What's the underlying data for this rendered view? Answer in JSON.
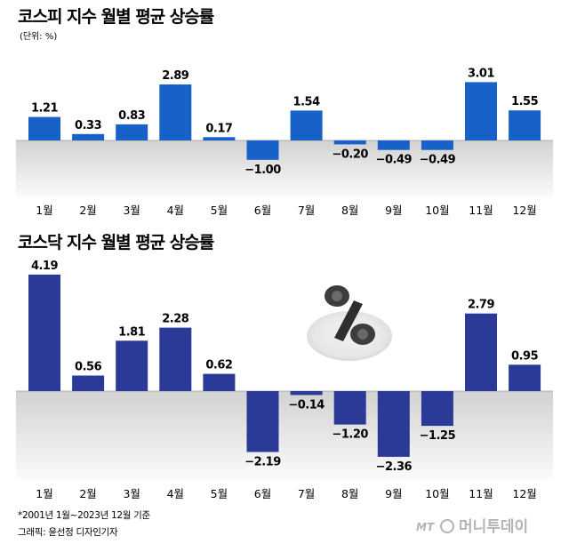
{
  "chart_data": [
    {
      "type": "bar",
      "title": "코스피 지수 월별 평균 상승률",
      "unit_note": "(단위: %)",
      "categories": [
        "1월",
        "2월",
        "3월",
        "4월",
        "5월",
        "6월",
        "7월",
        "8월",
        "9월",
        "10월",
        "11월",
        "12월"
      ],
      "values": [
        1.21,
        0.33,
        0.83,
        2.89,
        0.17,
        -1.0,
        1.54,
        -0.2,
        -0.49,
        -0.49,
        3.01,
        1.55
      ],
      "value_labels": [
        "1.21",
        "0.33",
        "0.83",
        "2.89",
        "0.17",
        "−1.00",
        "1.54",
        "−0.20",
        "−0.49",
        "−0.49",
        "3.01",
        "1.55"
      ],
      "bar_color": "#1761c9",
      "grid": false
    },
    {
      "type": "bar",
      "title": "코스닥 지수 월별 평균 상승률",
      "categories": [
        "1월",
        "2월",
        "3월",
        "4월",
        "5월",
        "6월",
        "7월",
        "8월",
        "9월",
        "10월",
        "11월",
        "12월"
      ],
      "values": [
        4.19,
        0.56,
        1.81,
        2.28,
        0.62,
        -2.19,
        -0.14,
        -1.2,
        -2.36,
        -1.25,
        2.79,
        0.95
      ],
      "value_labels": [
        "4.19",
        "0.56",
        "1.81",
        "2.28",
        "0.62",
        "−2.19",
        "−0.14",
        "−1.20",
        "−2.36",
        "−1.25",
        "2.79",
        "0.95"
      ],
      "bar_color": "#2b3a96",
      "grid": false
    }
  ],
  "footnotes": {
    "period": "*2001년 1월~2023년 12월 기준",
    "credit": "그래픽: 윤선정 디자인기자"
  },
  "brand": {
    "prefix": "MT",
    "name": "머니투데이"
  },
  "colors": {
    "kospi_bar": "#1761c9",
    "kosdaq_bar": "#2b3a96",
    "negative_zone_gradient_top": "#d2d2d2",
    "negative_zone_gradient_bottom": "#fafafa"
  },
  "icons": {
    "decoration": "percent-icon"
  }
}
